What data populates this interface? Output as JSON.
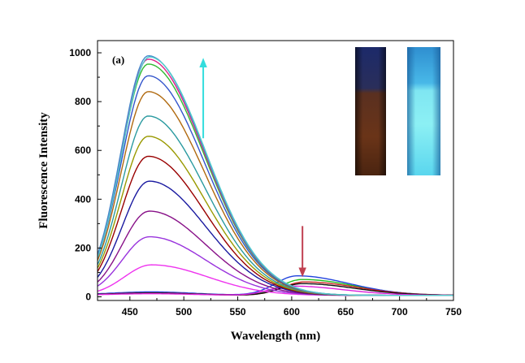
{
  "chart_data": {
    "type": "line",
    "xlabel": "Wavelength (nm)",
    "ylabel": "Fluorescence Intensity",
    "panel_label": "(a)",
    "xlim": [
      420,
      750
    ],
    "ylim": [
      -15,
      1050
    ],
    "x_ticks": [
      450,
      500,
      550,
      600,
      650,
      700,
      750
    ],
    "y_ticks": [
      0,
      200,
      400,
      600,
      800,
      1000
    ],
    "grid": false,
    "legend": "none",
    "arrows": [
      {
        "direction": "up",
        "x": 518,
        "y_from": 650,
        "y_to": 975,
        "color": "#33dddd"
      },
      {
        "direction": "down",
        "x": 610,
        "y_from": 290,
        "y_to": 85,
        "color": "#c04050"
      }
    ],
    "insets": [
      {
        "content": "vial under daylight, brown solution"
      },
      {
        "content": "vial under UV light, cyan emission"
      }
    ],
    "series": [
      {
        "color": "#22bb22",
        "peak_x": 610,
        "peak_y": 65,
        "type": "red"
      },
      {
        "color": "#2244dd",
        "peak_x": 605,
        "peak_y": 80,
        "type": "red"
      },
      {
        "color": "#cc2222",
        "peak_x": 612,
        "peak_y": 55,
        "type": "red"
      },
      {
        "color": "#111111",
        "peak_x": 610,
        "peak_y": 48,
        "type": "red"
      },
      {
        "color": "#dd22dd",
        "peak_x": 600,
        "peak_y": 38,
        "type": "red"
      },
      {
        "color": "#ee33ee",
        "peak_x": 470,
        "peak_y": 125,
        "type": "blue"
      },
      {
        "color": "#9933dd",
        "peak_x": 468,
        "peak_y": 240,
        "type": "blue"
      },
      {
        "color": "#881188",
        "peak_x": 468,
        "peak_y": 345,
        "type": "blue"
      },
      {
        "color": "#1a1aa0",
        "peak_x": 468,
        "peak_y": 468,
        "type": "blue"
      },
      {
        "color": "#990000",
        "peak_x": 467,
        "peak_y": 570,
        "type": "blue"
      },
      {
        "color": "#999900",
        "peak_x": 467,
        "peak_y": 652,
        "type": "blue"
      },
      {
        "color": "#2a9aa0",
        "peak_x": 467,
        "peak_y": 735,
        "type": "blue"
      },
      {
        "color": "#b06a10",
        "peak_x": 467,
        "peak_y": 835,
        "type": "blue"
      },
      {
        "color": "#3355cc",
        "peak_x": 467,
        "peak_y": 900,
        "type": "blue"
      },
      {
        "color": "#33bb33",
        "peak_x": 467,
        "peak_y": 948,
        "type": "blue"
      },
      {
        "color": "#dd2288",
        "peak_x": 467,
        "peak_y": 968,
        "type": "blue"
      },
      {
        "color": "#4488cc",
        "peak_x": 467,
        "peak_y": 982,
        "type": "blue"
      },
      {
        "color": "#55cccc",
        "peak_x": 468,
        "peak_y": 977,
        "type": "blue"
      }
    ]
  }
}
